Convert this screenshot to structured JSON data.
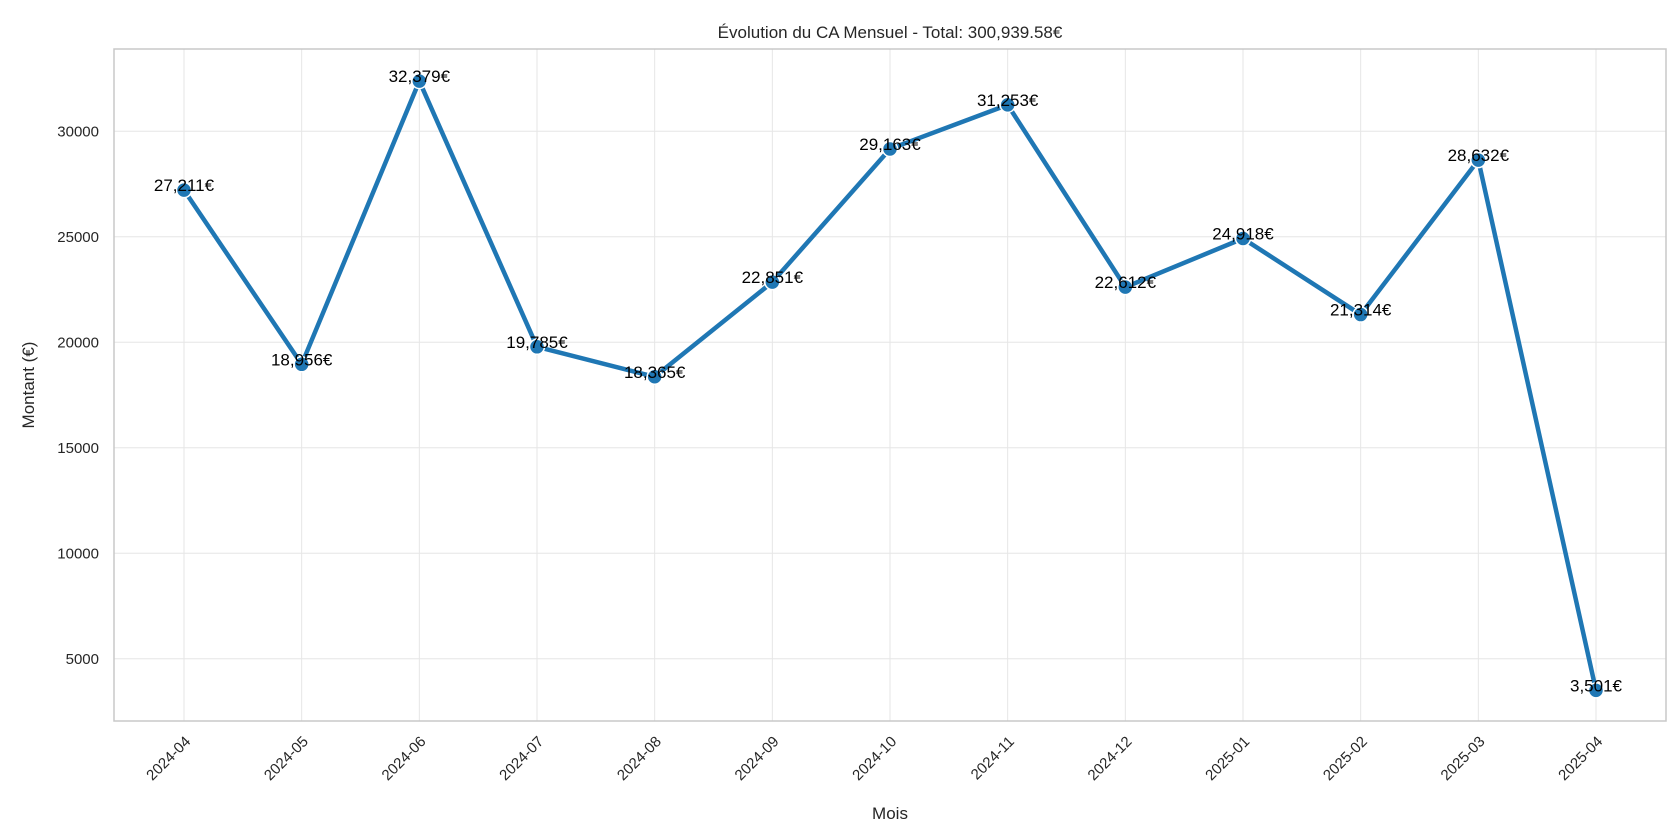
{
  "chart_data": {
    "type": "line",
    "title": "Évolution du CA Mensuel - Total: 300,939.58€",
    "xlabel": "Mois",
    "ylabel": "Montant (€)",
    "categories": [
      "2024-04",
      "2024-05",
      "2024-06",
      "2024-07",
      "2024-08",
      "2024-09",
      "2024-10",
      "2024-11",
      "2024-12",
      "2025-01",
      "2025-02",
      "2025-03",
      "2025-04"
    ],
    "values": [
      27211,
      18956,
      32379,
      19785,
      18365,
      22851,
      29163,
      31253,
      22612,
      24918,
      21314,
      28632,
      3501
    ],
    "data_labels": [
      "27,211€",
      "18,956€",
      "32,379€",
      "19,785€",
      "18,365€",
      "22,851€",
      "29,163€",
      "31,253€",
      "22,612€",
      "24,918€",
      "21,314€",
      "28,632€",
      "3,501€"
    ],
    "yticks": [
      5000,
      10000,
      15000,
      20000,
      25000,
      30000
    ],
    "ylim": [
      2050,
      33900
    ],
    "grid": true,
    "legend": "none",
    "color": "#1f77b4"
  }
}
